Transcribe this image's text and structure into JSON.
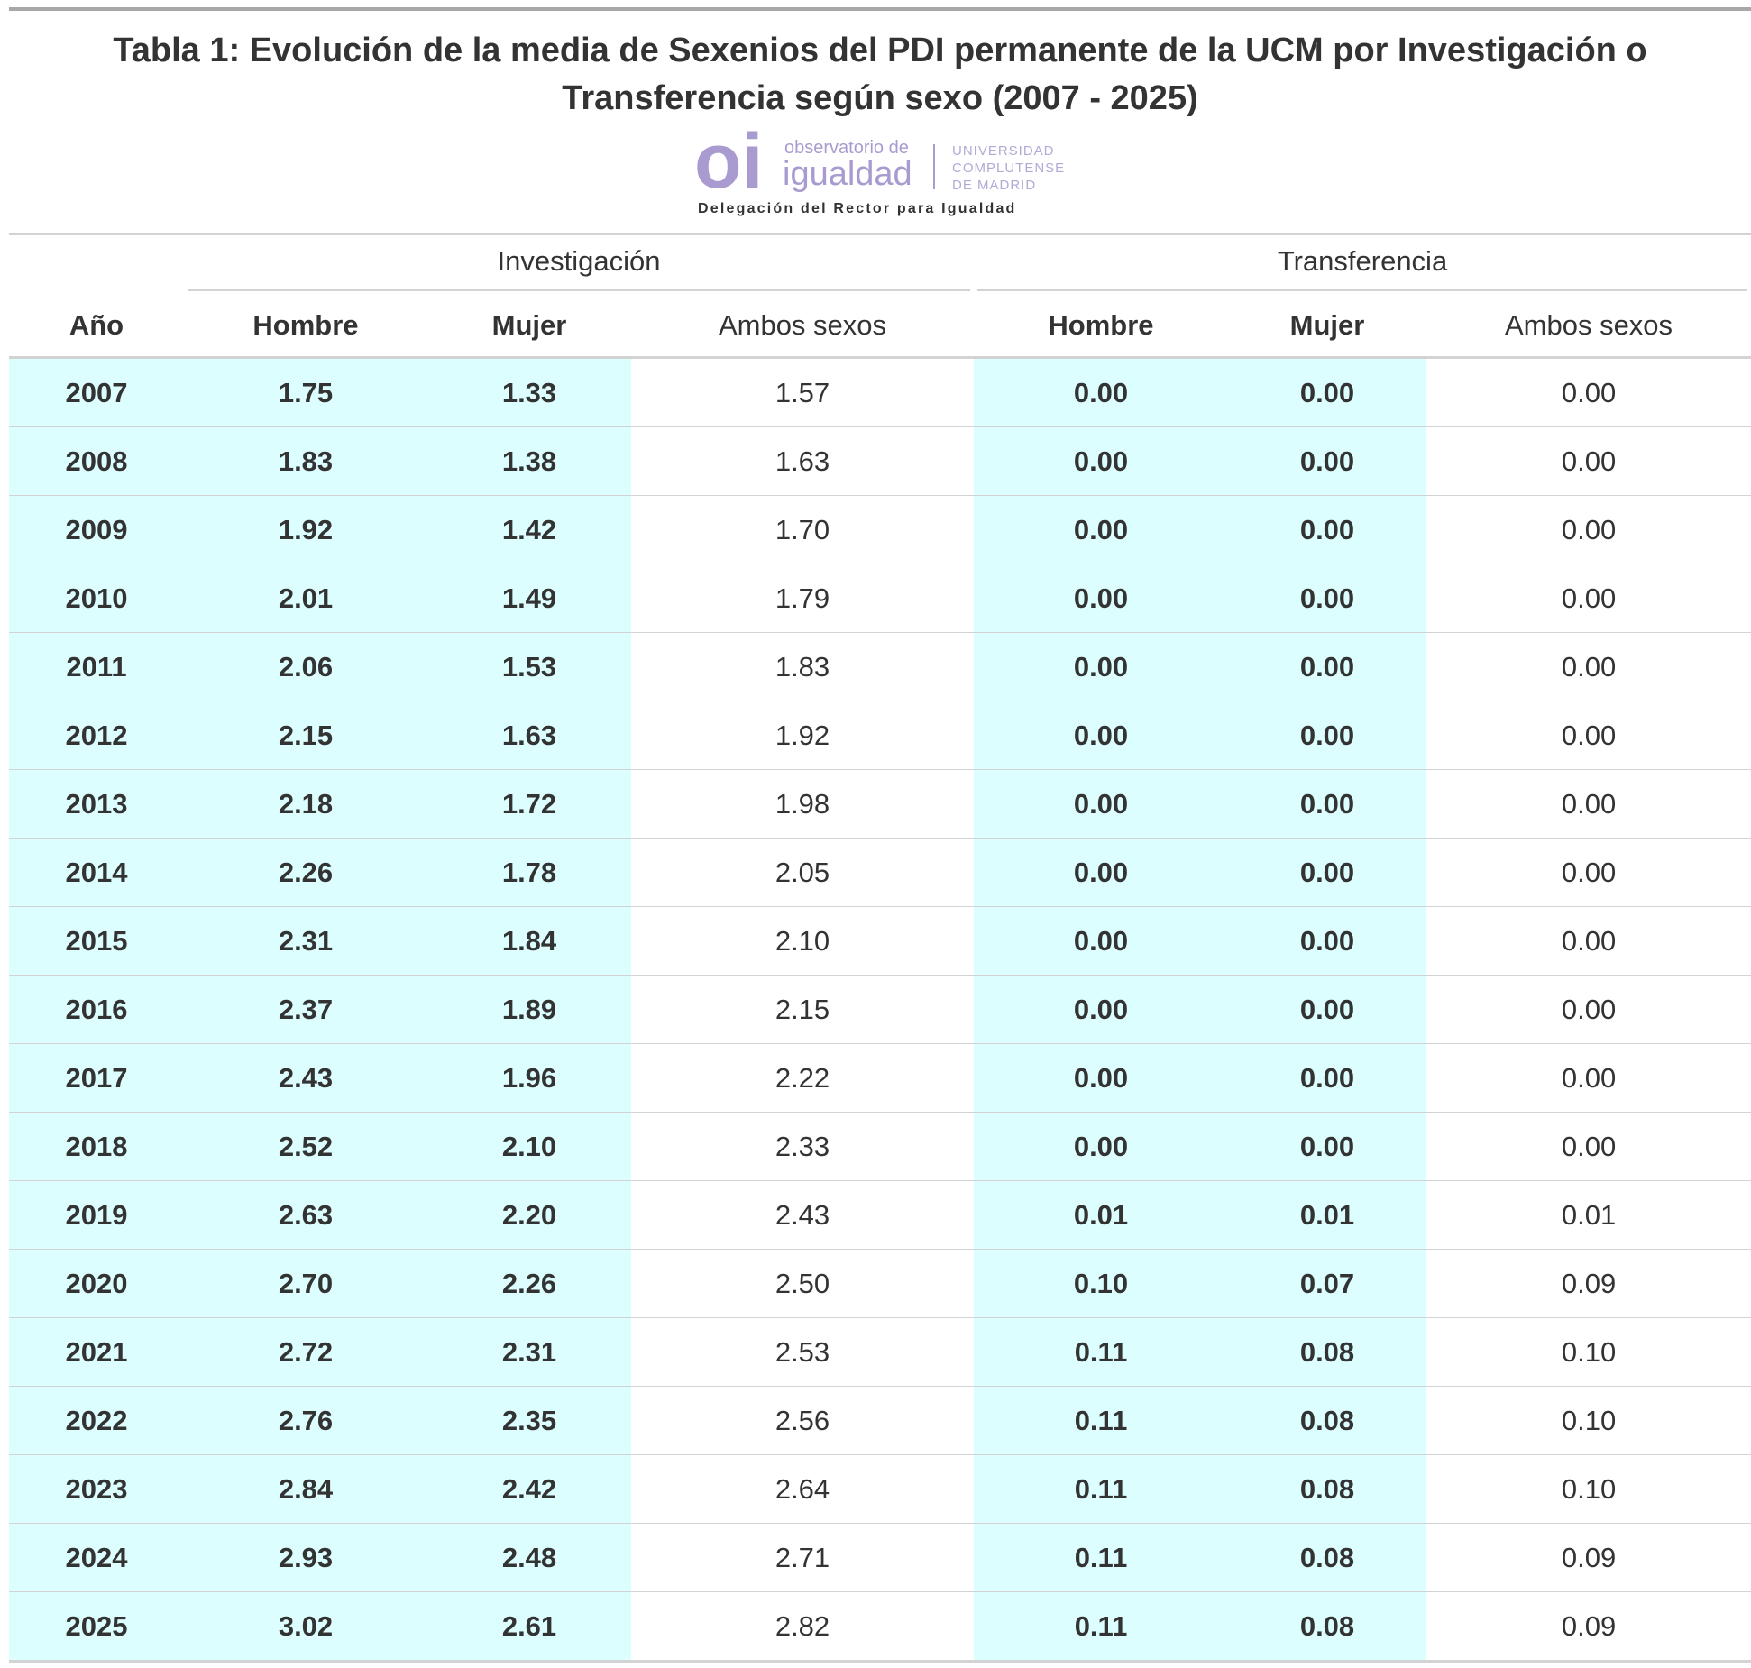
{
  "header": {
    "title": "Tabla 1: Evolución de la media de Sexenios del PDI permanente de la UCM por Investigación o Transferencia según sexo (2007 - 2025)",
    "logo": {
      "mark": "oi",
      "line1": "observatorio de",
      "line2": "igualdad",
      "uni1": "UNIVERSIDAD",
      "uni2": "COMPLUTENSE",
      "uni3": "DE MADRID",
      "tagline": "Delegación del Rector para Igualdad"
    }
  },
  "table": {
    "spanners": [
      "Investigación",
      "Transferencia"
    ],
    "columns": [
      "Año",
      "Hombre",
      "Mujer",
      "Ambos sexos",
      "Hombre",
      "Mujer",
      "Ambos sexos"
    ],
    "rows": [
      [
        "2007",
        "1.75",
        "1.33",
        "1.57",
        "0.00",
        "0.00",
        "0.00"
      ],
      [
        "2008",
        "1.83",
        "1.38",
        "1.63",
        "0.00",
        "0.00",
        "0.00"
      ],
      [
        "2009",
        "1.92",
        "1.42",
        "1.70",
        "0.00",
        "0.00",
        "0.00"
      ],
      [
        "2010",
        "2.01",
        "1.49",
        "1.79",
        "0.00",
        "0.00",
        "0.00"
      ],
      [
        "2011",
        "2.06",
        "1.53",
        "1.83",
        "0.00",
        "0.00",
        "0.00"
      ],
      [
        "2012",
        "2.15",
        "1.63",
        "1.92",
        "0.00",
        "0.00",
        "0.00"
      ],
      [
        "2013",
        "2.18",
        "1.72",
        "1.98",
        "0.00",
        "0.00",
        "0.00"
      ],
      [
        "2014",
        "2.26",
        "1.78",
        "2.05",
        "0.00",
        "0.00",
        "0.00"
      ],
      [
        "2015",
        "2.31",
        "1.84",
        "2.10",
        "0.00",
        "0.00",
        "0.00"
      ],
      [
        "2016",
        "2.37",
        "1.89",
        "2.15",
        "0.00",
        "0.00",
        "0.00"
      ],
      [
        "2017",
        "2.43",
        "1.96",
        "2.22",
        "0.00",
        "0.00",
        "0.00"
      ],
      [
        "2018",
        "2.52",
        "2.10",
        "2.33",
        "0.00",
        "0.00",
        "0.00"
      ],
      [
        "2019",
        "2.63",
        "2.20",
        "2.43",
        "0.01",
        "0.01",
        "0.01"
      ],
      [
        "2020",
        "2.70",
        "2.26",
        "2.50",
        "0.10",
        "0.07",
        "0.09"
      ],
      [
        "2021",
        "2.72",
        "2.31",
        "2.53",
        "0.11",
        "0.08",
        "0.10"
      ],
      [
        "2022",
        "2.76",
        "2.35",
        "2.56",
        "0.11",
        "0.08",
        "0.10"
      ],
      [
        "2023",
        "2.84",
        "2.42",
        "2.64",
        "0.11",
        "0.08",
        "0.10"
      ],
      [
        "2024",
        "2.93",
        "2.48",
        "2.71",
        "0.11",
        "0.08",
        "0.09"
      ],
      [
        "2025",
        "3.02",
        "2.61",
        "2.82",
        "0.11",
        "0.08",
        "0.09"
      ]
    ]
  }
}
